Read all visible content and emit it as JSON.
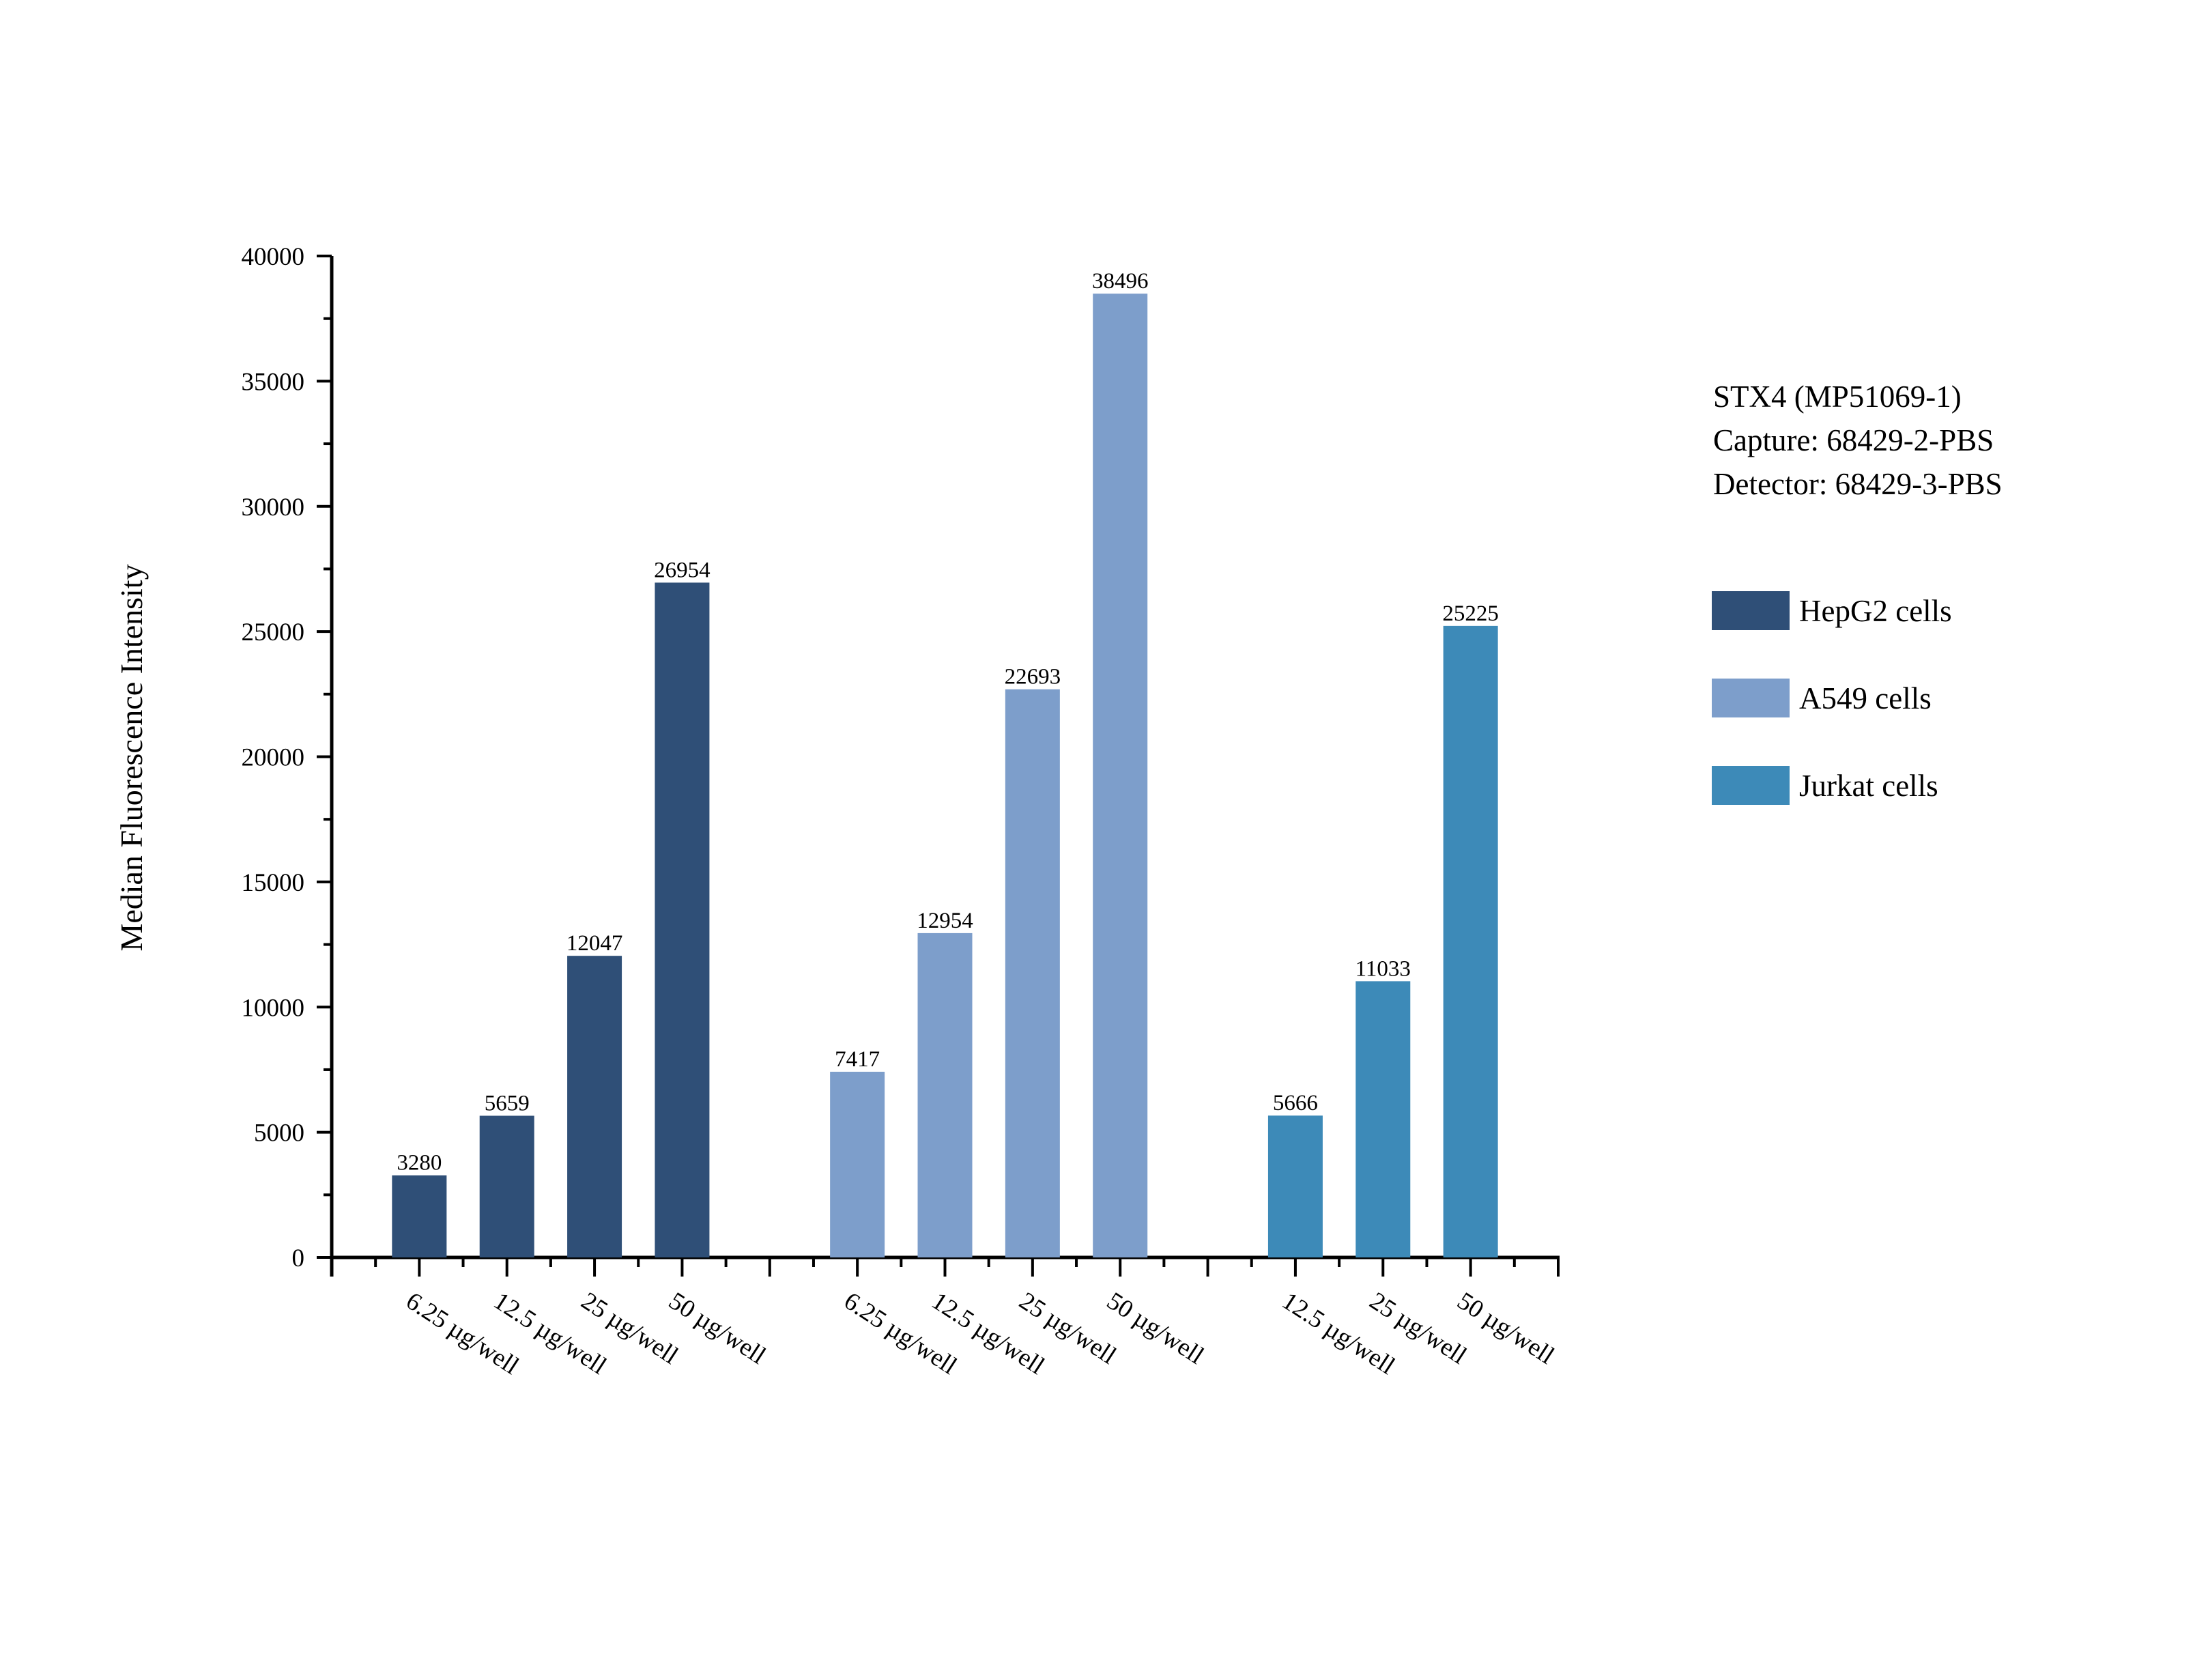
{
  "chart_data": {
    "type": "bar",
    "ylabel": "Median Fluorescence Intensity",
    "xlabel": "",
    "ylim": [
      0,
      40000
    ],
    "yticks": [
      0,
      5000,
      10000,
      15000,
      20000,
      25000,
      30000,
      35000,
      40000
    ],
    "grid": false,
    "legend_position": "right",
    "annotation": [
      "STX4 (MP51069-1)",
      "Capture: 68429-2-PBS",
      "Detector: 68429-3-PBS"
    ],
    "series": [
      {
        "name": "HepG2 cells",
        "color": "#2f4f77",
        "categories": [
          "6.25 µg/well",
          "12.5 µg/well",
          "25 µg/well",
          "50 µg/well"
        ],
        "values": [
          3280,
          5659,
          12047,
          26954
        ]
      },
      {
        "name": "A549 cells",
        "color": "#7d9ecb",
        "categories": [
          "6.25 µg/well",
          "12.5 µg/well",
          "25 µg/well",
          "50 µg/well"
        ],
        "values": [
          7417,
          12954,
          22693,
          38496
        ]
      },
      {
        "name": "Jurkat cells",
        "color": "#3d8ab8",
        "categories": [
          "12.5 µg/well",
          "25 µg/well",
          "50 µg/well"
        ],
        "values": [
          5666,
          11033,
          25225
        ]
      }
    ]
  }
}
